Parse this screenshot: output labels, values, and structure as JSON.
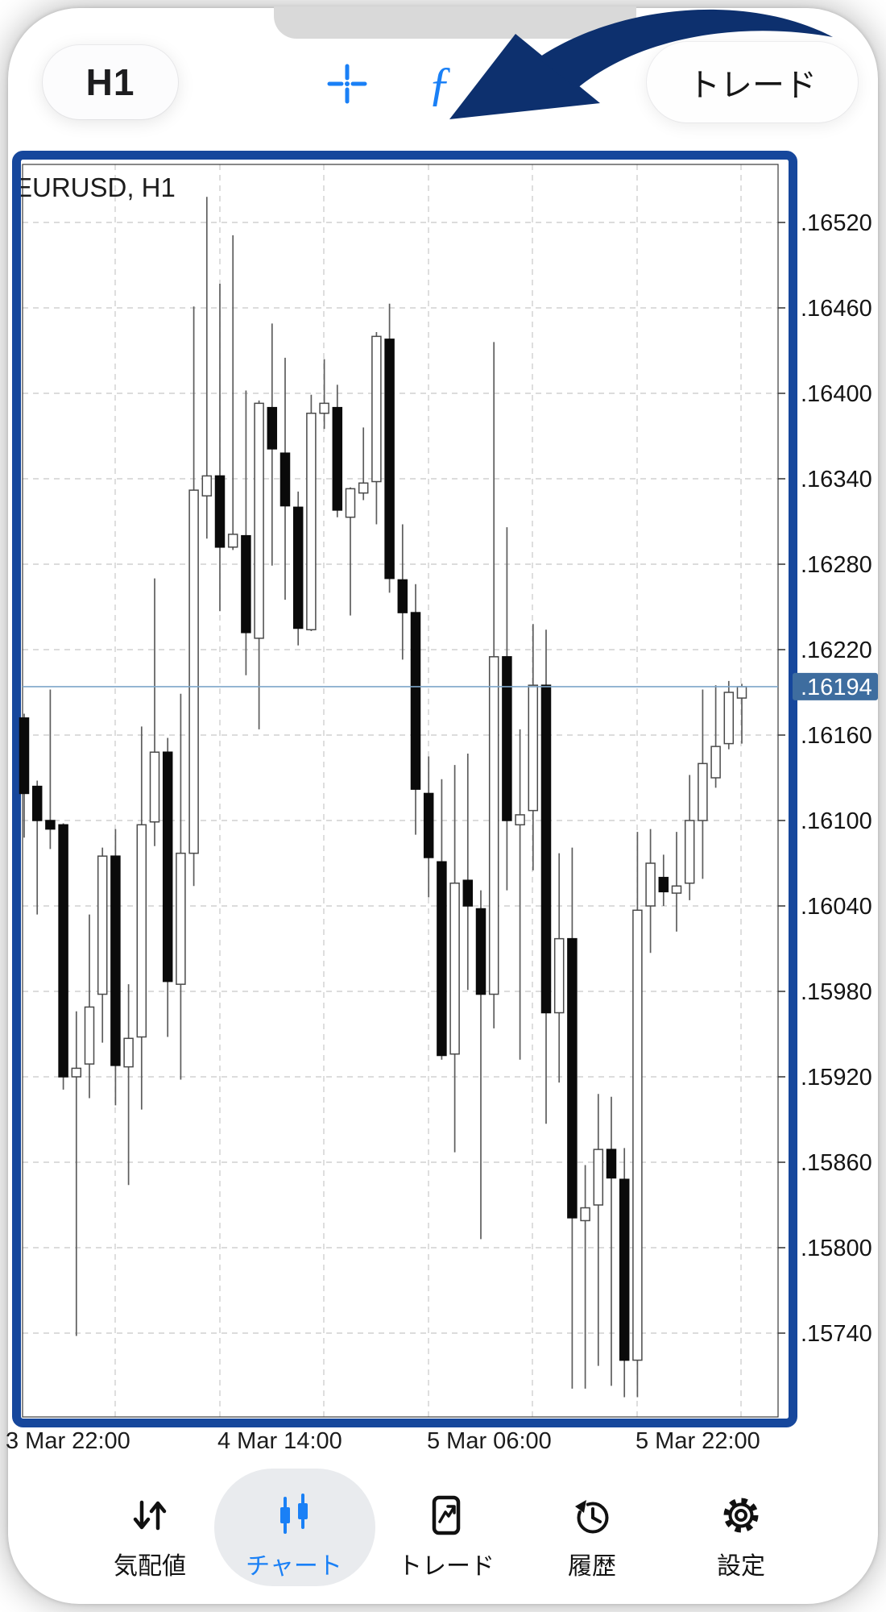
{
  "toolbar": {
    "timeframe": "H1",
    "trade_label": "トレード",
    "icons": [
      "crosshair-icon",
      "function-icon",
      "objects-icon"
    ]
  },
  "colors": {
    "accent_blue": "#1a80f6",
    "chart_border_navy": "#16479c",
    "arrow_navy": "#0d306e",
    "price_tag_bg": "#3e6d9f",
    "price_line": "#7ea6c9",
    "grid_gray": "#c7c7c7",
    "notch_gray": "#d9d9d9",
    "nav_active_pill": "#e9ebee"
  },
  "chart_data": {
    "type": "candlestick",
    "title": "EURUSD, H1",
    "symbol_label": "EURUSD, H1",
    "symbol": "EURUSD",
    "timeframe": "H1",
    "legend_position": "none",
    "grid": "dashed",
    "current_price": 1.16194,
    "current_price_label": ".16194",
    "ylim": [
      1.15695,
      1.1654
    ],
    "y_ticks": [
      {
        "label": ".16520",
        "value": 1.1652
      },
      {
        "label": ".16460",
        "value": 1.1646
      },
      {
        "label": ".16400",
        "value": 1.164
      },
      {
        "label": ".16340",
        "value": 1.1634
      },
      {
        "label": ".16280",
        "value": 1.1628
      },
      {
        "label": ".16220",
        "value": 1.1622
      },
      {
        "label": ".16160",
        "value": 1.1616
      },
      {
        "label": ".16100",
        "value": 1.161
      },
      {
        "label": ".16040",
        "value": 1.1604
      },
      {
        "label": ".15980",
        "value": 1.1598
      },
      {
        "label": ".15920",
        "value": 1.1592
      },
      {
        "label": ".15860",
        "value": 1.1586
      },
      {
        "label": ".15800",
        "value": 1.158
      },
      {
        "label": ".15740",
        "value": 1.1574
      }
    ],
    "x_ticks": [
      "3 Mar 22:00",
      "4 Mar 14:00",
      "5 Mar 06:00",
      "5 Mar 22:00"
    ],
    "candles_format": [
      "open",
      "high",
      "low",
      "close"
    ],
    "candles": [
      [
        1.16172,
        1.16175,
        1.16088,
        1.16119
      ],
      [
        1.16124,
        1.16128,
        1.16034,
        1.161
      ],
      [
        1.161,
        1.16192,
        1.1608,
        1.16094
      ],
      [
        1.16097,
        1.16098,
        1.15911,
        1.1592
      ],
      [
        1.1592,
        1.15966,
        1.15738,
        1.15926
      ],
      [
        1.15929,
        1.16034,
        1.15905,
        1.15969
      ],
      [
        1.15978,
        1.16081,
        1.15944,
        1.16075
      ],
      [
        1.16075,
        1.16094,
        1.159,
        1.15928
      ],
      [
        1.15927,
        1.15985,
        1.15844,
        1.15947
      ],
      [
        1.15948,
        1.16166,
        1.15897,
        1.16097
      ],
      [
        1.16099,
        1.1627,
        1.16082,
        1.16148
      ],
      [
        1.16148,
        1.16158,
        1.15948,
        1.15987
      ],
      [
        1.15985,
        1.16189,
        1.15918,
        1.16077
      ],
      [
        1.16077,
        1.16461,
        1.16054,
        1.16332
      ],
      [
        1.16328,
        1.16538,
        1.16298,
        1.16342
      ],
      [
        1.16342,
        1.16477,
        1.16247,
        1.16292
      ],
      [
        1.16292,
        1.16511,
        1.1629,
        1.16301
      ],
      [
        1.163,
        1.16402,
        1.16202,
        1.16232
      ],
      [
        1.16228,
        1.16395,
        1.16164,
        1.16393
      ],
      [
        1.1639,
        1.16449,
        1.16279,
        1.16361
      ],
      [
        1.16358,
        1.16425,
        1.16255,
        1.16321
      ],
      [
        1.1632,
        1.16331,
        1.16223,
        1.16235
      ],
      [
        1.16234,
        1.16399,
        1.16233,
        1.16386
      ],
      [
        1.16386,
        1.16424,
        1.16375,
        1.16393
      ],
      [
        1.1639,
        1.16406,
        1.16313,
        1.16318
      ],
      [
        1.16313,
        1.16334,
        1.16244,
        1.16333
      ],
      [
        1.1633,
        1.16376,
        1.16325,
        1.16337
      ],
      [
        1.16338,
        1.16443,
        1.16308,
        1.1644
      ],
      [
        1.16438,
        1.16463,
        1.1626,
        1.1627
      ],
      [
        1.16269,
        1.16308,
        1.16213,
        1.16246
      ],
      [
        1.16246,
        1.16266,
        1.1609,
        1.16122
      ],
      [
        1.16119,
        1.16145,
        1.16046,
        1.16074
      ],
      [
        1.16071,
        1.16129,
        1.15932,
        1.15935
      ],
      [
        1.15936,
        1.16139,
        1.15867,
        1.16056
      ],
      [
        1.16058,
        1.16147,
        1.15981,
        1.1604
      ],
      [
        1.16038,
        1.16051,
        1.15806,
        1.15978
      ],
      [
        1.15978,
        1.16436,
        1.15954,
        1.16215
      ],
      [
        1.16215,
        1.16306,
        1.16051,
        1.161
      ],
      [
        1.16097,
        1.16164,
        1.15932,
        1.16104
      ],
      [
        1.16107,
        1.16238,
        1.16065,
        1.16195
      ],
      [
        1.16195,
        1.16234,
        1.15887,
        1.15965
      ],
      [
        1.15965,
        1.16077,
        1.15916,
        1.16017
      ],
      [
        1.16017,
        1.16081,
        1.15701,
        1.15821
      ],
      [
        1.15819,
        1.15858,
        1.15701,
        1.15828
      ],
      [
        1.1583,
        1.15908,
        1.15717,
        1.15869
      ],
      [
        1.15869,
        1.15906,
        1.15703,
        1.15849
      ],
      [
        1.15848,
        1.1587,
        1.15695,
        1.15721
      ],
      [
        1.15721,
        1.16092,
        1.15695,
        1.16037
      ],
      [
        1.1604,
        1.16094,
        1.16007,
        1.1607
      ],
      [
        1.1606,
        1.16076,
        1.1604,
        1.1605
      ],
      [
        1.16049,
        1.16092,
        1.16022,
        1.16054
      ],
      [
        1.16056,
        1.16132,
        1.16044,
        1.161
      ],
      [
        1.161,
        1.16192,
        1.16059,
        1.1614
      ],
      [
        1.1613,
        1.16195,
        1.16123,
        1.16152
      ],
      [
        1.16154,
        1.16198,
        1.1615,
        1.1619
      ],
      [
        1.16186,
        1.16196,
        1.16154,
        1.16194
      ]
    ]
  },
  "nav": {
    "items": [
      {
        "label": "気配値",
        "active": false
      },
      {
        "label": "チャート",
        "active": true
      },
      {
        "label": "トレード",
        "active": false
      },
      {
        "label": "履歴",
        "active": false
      },
      {
        "label": "設定",
        "active": false
      }
    ]
  }
}
